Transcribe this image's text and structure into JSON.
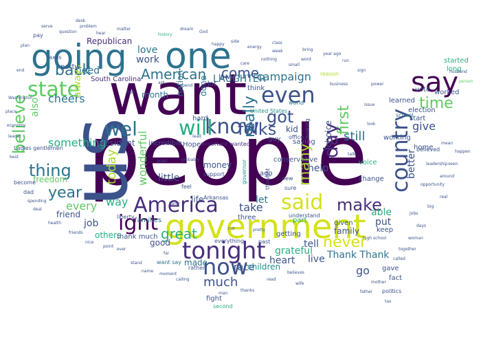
{
  "words": {
    "people": "people",
    "us": "us",
    "want": "want",
    "government": "government",
    "going": "going",
    "one": "one",
    "tonight": "tonight",
    "country": "country",
    "america": "America",
    "say": "say",
    "said": "said",
    "even": "even",
    "state": "state",
    "know": "know",
    "will": "will",
    "well": "wel",
    "right": "ight",
    "make": "make",
    "now": "now",
    "many": "many",
    "believe": "believe",
    "time": "time",
    "day": "day",
    "back": "back",
    "year": "year",
    "thing": "thing",
    "american": "American",
    "folks": "folks",
    "got": "got",
    "never": "never",
    "really": "really",
    "laughter": "LAUGHTER",
    "cheers": "cheers",
    "great": "great",
    "come": "come",
    "campaign": "campaign",
    "first": "first",
    "much": "much",
    "today": "today",
    "wonderful": "wonderful",
    "still": "still",
    "give": "give",
    "love": "love",
    "work": "work",
    "something": "something",
    "way": "way",
    "every": "every",
    "need": "need",
    "job": "job",
    "also": "also",
    "always": "always",
    "little": "little",
    "let": "let",
    "take": "take",
    "better": "better",
    "able": "able",
    "put": "put",
    "tell": "tell",
    "help": "help",
    "go": "go",
    "live": "live",
    "family": "family",
    "thank_thank": "Thank Thank",
    "grateful": "grateful",
    "heart": "heart",
    "children": "children",
    "race": "race",
    "made": "made",
    "thank_much": "thank much",
    "good": "good",
    "others": "others",
    "friend": "friend",
    "freedom": "freedom",
    "families": "families",
    "life": "life",
    "money": "money",
    "hope": "Hope",
    "president": "president",
    "republican": "Republican",
    "south_carolina": "South Carolina",
    "party": "party",
    "month": "month",
    "nation": "nation",
    "done": "done",
    "kid": "kid",
    "choice": "choice",
    "voice": "voice",
    "change": "change",
    "conservative": "conservative",
    "getting": "getting",
    "given": "given",
    "saying": "saying",
    "election": "election",
    "vote": "vote",
    "learned": "learned",
    "working": "working",
    "home": "home",
    "fact": "fact",
    "fight": "fight",
    "long": "long",
    "started": "started",
    "worked": "worked",
    "keep": "keep",
    "gave": "gave",
    "important": "important wanted",
    "united_states": "United States",
    "world": "world",
    "lot": "lot",
    "law": "law",
    "think": "think",
    "believed": "believed",
    "ladies": "Ladies gentlemen",
    "ago": "ago",
    "three": "three",
    "incredible": "incredible",
    "part": "part",
    "want_say": "want say",
    "everything": "everything",
    "past": "past",
    "understand": "understand",
    "office": "office",
    "making": "making",
    "sure": "sure",
    "thought": "thought",
    "governor": "governor",
    "arkansas": "Arkansas",
    "rather": "rather",
    "liberty": "liberty",
    "school": "school",
    "taxes": "taxes",
    "pay": "pay",
    "support": "support",
    "start": "start",
    "guy": "guy",
    "politics": "politics",
    "second": "second",
    "new": "new",
    "become": "become",
    "dad": "dad",
    "feel": "feel",
    "probably": "probably",
    "care": "care",
    "small": "small",
    "reason": "reason",
    "business": "business",
    "husband": "husband",
    "person": "person",
    "nothing": "nothing",
    "week": "week",
    "bring": "bring",
    "history": "history",
    "dream": "dream",
    "god": "God",
    "matter": "matter",
    "hard": "hard",
    "best": "best",
    "place": "place",
    "mean": "mean",
    "happen": "happen",
    "seen": "seen",
    "around": "around",
    "opportunity": "opportunity",
    "real": "real",
    "big": "big",
    "job2": "jobs",
    "day2": "days",
    "woman": "woman",
    "together": "together",
    "called": "called",
    "mother": "mother",
    "father": "father",
    "tax": "tax",
    "thanks": "thanks",
    "man": "man",
    "read": "read",
    "believes": "believes",
    "wife": "wife",
    "called2": "calling",
    "moment": "moment",
    "name": "name",
    "stand": "stand",
    "ever": "ever",
    "point": "point",
    "nice": "nice",
    "friends": "friends",
    "health": "health",
    "deal": "deal",
    "spending": "spending",
    "leader": "leader",
    "economy": "economy",
    "washington": "Washington",
    "question": "question",
    "problem": "problem",
    "hear": "hear",
    "plan": "plan",
    "end": "end",
    "high_school": "high school",
    "talk": "talk",
    "look": "look",
    "far": "far",
    "issue": "issue",
    "power": "power",
    "sign": "sign",
    "run": "run",
    "year_ago": "year ago",
    "leadership": "leadership",
    "word": "word",
    "happy": "happy",
    "side": "side",
    "energy": "energy",
    "class": "class",
    "spend": "spend",
    "ask": "ask",
    "free": "free",
    "lead": "lead",
    "order": "order",
    "hand": "hand",
    "cut": "cut",
    "pretty": "pretty",
    "desk": "desk",
    "serve": "serve"
  }
}
